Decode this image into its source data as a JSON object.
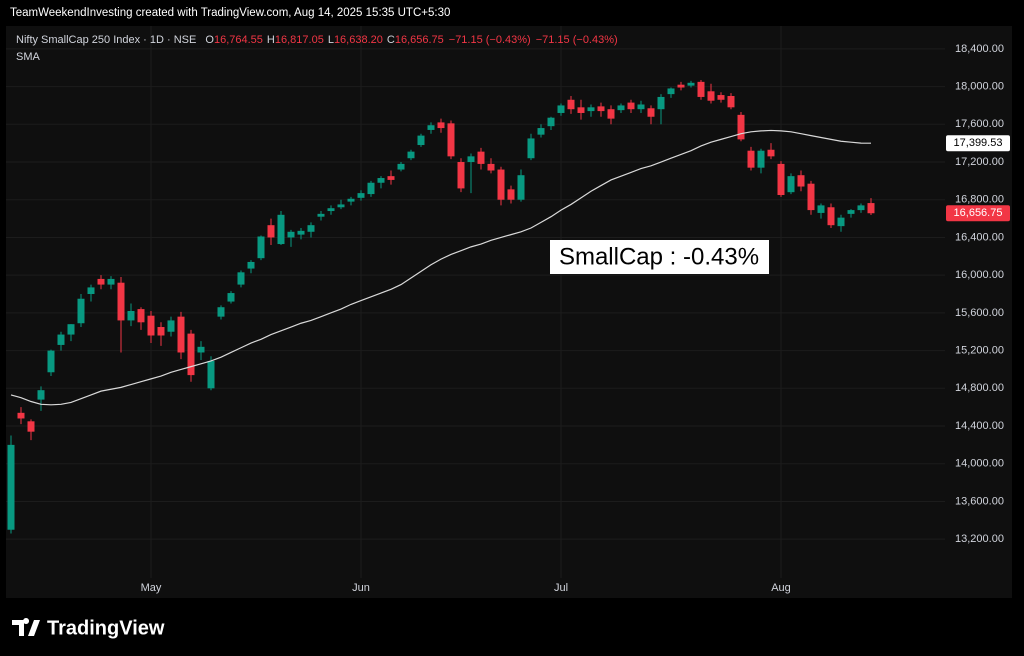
{
  "header": {
    "attribution": "TeamWeekendInvesting created with TradingView.com, Aug 14, 2025 15:35 UTC+5:30"
  },
  "footer": {
    "brand": "TradingView"
  },
  "chart_data": {
    "type": "candlestick",
    "symbol": "Nifty SmallCap 250 Index · 1D · NSE",
    "legend": {
      "labels": [
        "O",
        "H",
        "L",
        "C"
      ],
      "values": [
        16764.55,
        16817.05,
        16638.2,
        16656.75
      ],
      "value_labels": [
        "16,764.55",
        "16,817.05",
        "16,638.20",
        "16,656.75"
      ],
      "change_labels": [
        "−71.15 (−0.43%)",
        "−71.15 (−0.43%)"
      ]
    },
    "annotation": "SmallCap : -0.43%",
    "up_color": "#089981",
    "down_color": "#f23645",
    "categories": [
      null,
      null,
      null,
      null,
      null,
      null,
      null,
      null,
      null,
      null,
      null,
      null,
      null,
      null,
      "May",
      null,
      null,
      null,
      null,
      null,
      null,
      null,
      null,
      null,
      null,
      null,
      null,
      null,
      null,
      null,
      null,
      null,
      null,
      null,
      null,
      "Jun",
      null,
      null,
      null,
      null,
      null,
      null,
      null,
      null,
      null,
      null,
      null,
      null,
      null,
      null,
      null,
      null,
      null,
      null,
      null,
      "Jul",
      null,
      null,
      null,
      null,
      null,
      null,
      null,
      null,
      null,
      null,
      null,
      null,
      null,
      null,
      null,
      null,
      null,
      null,
      null,
      null,
      null,
      "Aug",
      null,
      null,
      null,
      null,
      null,
      null,
      null,
      null,
      null
    ],
    "open": [
      13300,
      14540,
      14450,
      14680,
      14970,
      15260,
      15370,
      15490,
      15800,
      15960,
      15900,
      15920,
      15520,
      15640,
      15570,
      15450,
      15400,
      15560,
      15380,
      15180,
      14800,
      15560,
      15720,
      15900,
      16070,
      16180,
      16530,
      16330,
      16400,
      16430,
      16460,
      16620,
      16680,
      16720,
      16780,
      16820,
      16860,
      16980,
      17050,
      17120,
      17240,
      17380,
      17540,
      17620,
      17610,
      17200,
      17200,
      17310,
      17180,
      17120,
      16910,
      16800,
      17240,
      17490,
      17580,
      17720,
      17860,
      17780,
      17740,
      17790,
      17760,
      17750,
      17830,
      17760,
      17770,
      17760,
      17920,
      18020,
      18010,
      18050,
      17950,
      17910,
      17900,
      17700,
      17320,
      17140,
      17330,
      17180,
      16880,
      17060,
      16970,
      16660,
      16720,
      16520,
      16650,
      16690,
      16764.55
    ],
    "high": [
      14300,
      14600,
      14470,
      14820,
      15210,
      15400,
      15480,
      15800,
      15900,
      16000,
      15990,
      15980,
      15700,
      15660,
      15620,
      15500,
      15560,
      15610,
      15420,
      15300,
      15140,
      15680,
      15830,
      16050,
      16160,
      16420,
      16600,
      16680,
      16480,
      16500,
      16560,
      16680,
      16740,
      16800,
      16830,
      16900,
      17000,
      17050,
      17110,
      17200,
      17330,
      17500,
      17620,
      17660,
      17640,
      17240,
      17290,
      17350,
      17240,
      17150,
      16950,
      17120,
      17500,
      17600,
      17680,
      17820,
      17900,
      17860,
      17810,
      17830,
      17800,
      17820,
      17860,
      17850,
      17800,
      17920,
      17990,
      18050,
      18060,
      18070,
      18030,
      17940,
      17930,
      17730,
      17360,
      17340,
      17400,
      17210,
      17080,
      17110,
      17000,
      16760,
      16760,
      16640,
      16700,
      16760,
      16817.05
    ],
    "low": [
      13260,
      14420,
      14250,
      14560,
      14930,
      15200,
      15300,
      15450,
      15720,
      15850,
      15850,
      15180,
      15460,
      15420,
      15280,
      15250,
      15350,
      15110,
      14870,
      15100,
      14780,
      15530,
      15700,
      15870,
      16020,
      16160,
      16320,
      16320,
      16300,
      16380,
      16400,
      16580,
      16640,
      16700,
      16740,
      16790,
      16830,
      16920,
      16960,
      17100,
      17220,
      17360,
      17500,
      17510,
      17230,
      16880,
      16870,
      17120,
      17080,
      16740,
      16760,
      16780,
      17220,
      17460,
      17540,
      17690,
      17710,
      17650,
      17680,
      17680,
      17600,
      17720,
      17720,
      17720,
      17600,
      17600,
      17880,
      17960,
      17990,
      17860,
      17820,
      17830,
      17760,
      17420,
      17110,
      17080,
      17230,
      16830,
      16860,
      16890,
      16640,
      16600,
      16500,
      16460,
      16610,
      16660,
      16638.2
    ],
    "close": [
      14200,
      14480,
      14340,
      14780,
      15200,
      15370,
      15480,
      15750,
      15870,
      15900,
      15960,
      15520,
      15620,
      15500,
      15360,
      15360,
      15520,
      15180,
      14940,
      15240,
      15090,
      15660,
      15810,
      16030,
      16140,
      16410,
      16400,
      16640,
      16460,
      16470,
      16530,
      16650,
      16710,
      16750,
      16810,
      16870,
      16980,
      17030,
      17010,
      17180,
      17310,
      17480,
      17590,
      17560,
      17260,
      16920,
      17260,
      17180,
      17110,
      16800,
      16800,
      17060,
      17450,
      17560,
      17670,
      17800,
      17760,
      17720,
      17780,
      17740,
      17660,
      17800,
      17760,
      17810,
      17680,
      17890,
      17980,
      17990,
      18040,
      17890,
      17850,
      17860,
      17780,
      17440,
      17140,
      17320,
      17260,
      16850,
      17050,
      16940,
      16690,
      16740,
      16530,
      16610,
      16690,
      16740,
      16656.75
    ],
    "close_last_label": "16,656.75",
    "series": [
      {
        "name": "SMA",
        "color": "#d9d9d9",
        "last_label": "17,399.53",
        "values": [
          14730,
          14700,
          14660,
          14630,
          14625,
          14630,
          14650,
          14690,
          14730,
          14770,
          14790,
          14810,
          14840,
          14870,
          14900,
          14930,
          14970,
          15000,
          15030,
          15060,
          15090,
          15130,
          15180,
          15230,
          15280,
          15320,
          15370,
          15410,
          15450,
          15490,
          15520,
          15560,
          15600,
          15640,
          15690,
          15730,
          15770,
          15810,
          15850,
          15900,
          15970,
          16040,
          16110,
          16170,
          16220,
          16260,
          16300,
          16330,
          16370,
          16400,
          16430,
          16460,
          16500,
          16560,
          16620,
          16690,
          16750,
          16820,
          16890,
          16950,
          17010,
          17050,
          17090,
          17130,
          17160,
          17200,
          17240,
          17280,
          17320,
          17370,
          17410,
          17440,
          17470,
          17500,
          17520,
          17530,
          17535,
          17530,
          17520,
          17500,
          17480,
          17460,
          17440,
          17420,
          17410,
          17400,
          17399.53
        ]
      }
    ],
    "ylim": [
      12820,
      18600
    ],
    "yticks": [
      {
        "value": 13200,
        "label": "13,200.00"
      },
      {
        "value": 13600,
        "label": "13,600.00"
      },
      {
        "value": 14000,
        "label": "14,000.00"
      },
      {
        "value": 14400,
        "label": "14,400.00"
      },
      {
        "value": 14800,
        "label": "14,800.00"
      },
      {
        "value": 15200,
        "label": "15,200.00"
      },
      {
        "value": 15600,
        "label": "15,600.00"
      },
      {
        "value": 16000,
        "label": "16,000.00"
      },
      {
        "value": 16400,
        "label": "16,400.00"
      },
      {
        "value": 16800,
        "label": "16,800.00"
      },
      {
        "value": 17200,
        "label": "17,200.00"
      },
      {
        "value": 17600,
        "label": "17,600.00"
      },
      {
        "value": 18000,
        "label": "18,000.00"
      },
      {
        "value": 18400,
        "label": "18,400.00"
      }
    ],
    "grid": true
  }
}
